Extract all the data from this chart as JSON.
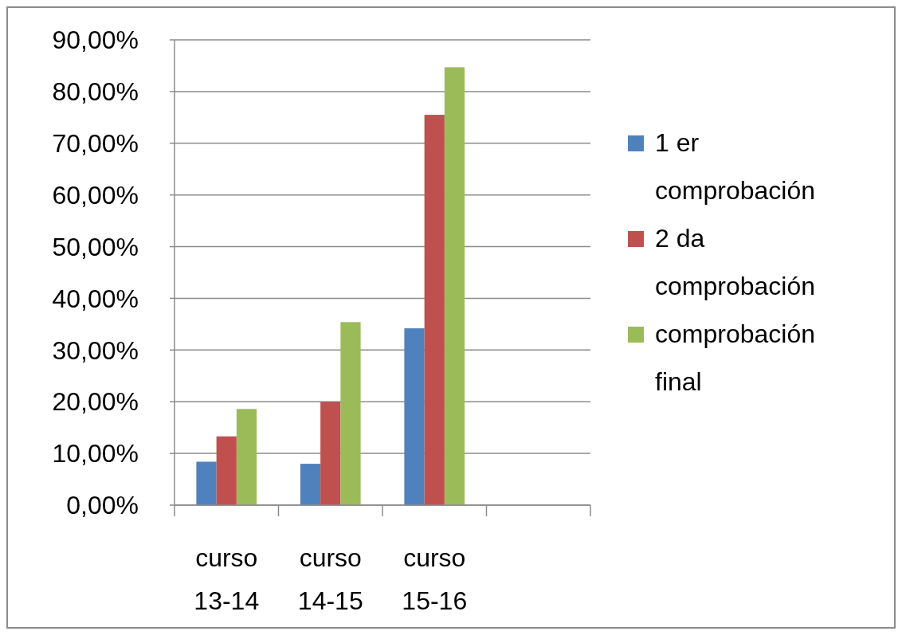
{
  "chart_data": {
    "type": "bar",
    "categories": [
      "curso 13-14",
      "curso 14-15",
      "curso 15-16",
      null
    ],
    "series": [
      {
        "name": "1 er comprobación",
        "color": "#4f81bd",
        "values": [
          8.4,
          8.0,
          34.2,
          null
        ]
      },
      {
        "name": "2 da comprobación",
        "color": "#c0504d",
        "values": [
          13.3,
          20.0,
          75.5,
          null
        ]
      },
      {
        "name": "comprobación final",
        "color": "#9bbb59",
        "values": [
          18.6,
          35.4,
          84.7,
          null
        ]
      }
    ],
    "ylim": [
      0,
      90
    ],
    "yticks": [
      {
        "value": 0,
        "label": "0,00%"
      },
      {
        "value": 10,
        "label": "10,00%"
      },
      {
        "value": 20,
        "label": "20,00%"
      },
      {
        "value": 30,
        "label": "30,00%"
      },
      {
        "value": 40,
        "label": "40,00%"
      },
      {
        "value": 50,
        "label": "50,00%"
      },
      {
        "value": 60,
        "label": "60,00%"
      },
      {
        "value": 70,
        "label": "70,00%"
      },
      {
        "value": 80,
        "label": "80,00%"
      },
      {
        "value": 90,
        "label": "90,00%"
      }
    ],
    "grid": "y",
    "legend": "right"
  }
}
